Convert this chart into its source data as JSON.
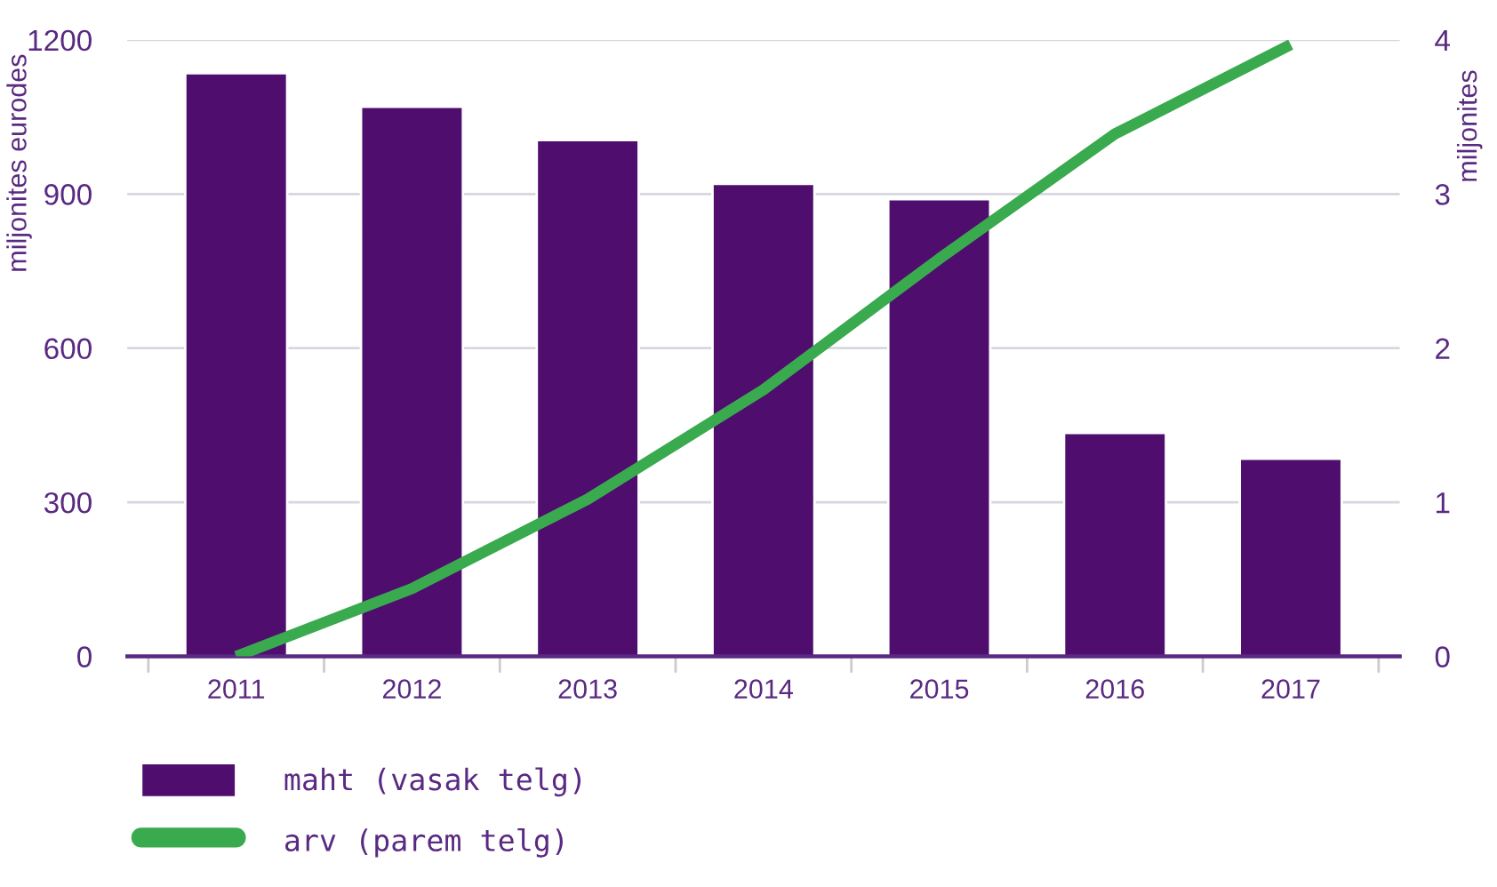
{
  "chart_data": {
    "type": "bar",
    "categories": [
      "2011",
      "2012",
      "2013",
      "2014",
      "2015",
      "2016",
      "2017"
    ],
    "ylabel": "miljonites eurodes",
    "y2label": "miljonites",
    "series": [
      {
        "name": "maht (vasak telg)",
        "color": "#4f0e6e",
        "values": [
          1135,
          1070,
          1005,
          920,
          890,
          435,
          385
        ]
      },
      {
        "name": "arv (parem telg)",
        "type": "line",
        "axis": "y2",
        "color": "#3aaa4e",
        "values": [
          0,
          0.44,
          1.02,
          1.73,
          2.58,
          3.39,
          3.97
        ]
      }
    ],
    "ylim": [
      0,
      1200
    ],
    "yticks": [
      0,
      300,
      600,
      900,
      1200
    ],
    "y2lim": [
      0,
      4
    ],
    "y2ticks": [
      0,
      1,
      2,
      3,
      4
    ],
    "grid": "y",
    "legend": "bottom left",
    "marker": "none",
    "line_style": "solid"
  }
}
